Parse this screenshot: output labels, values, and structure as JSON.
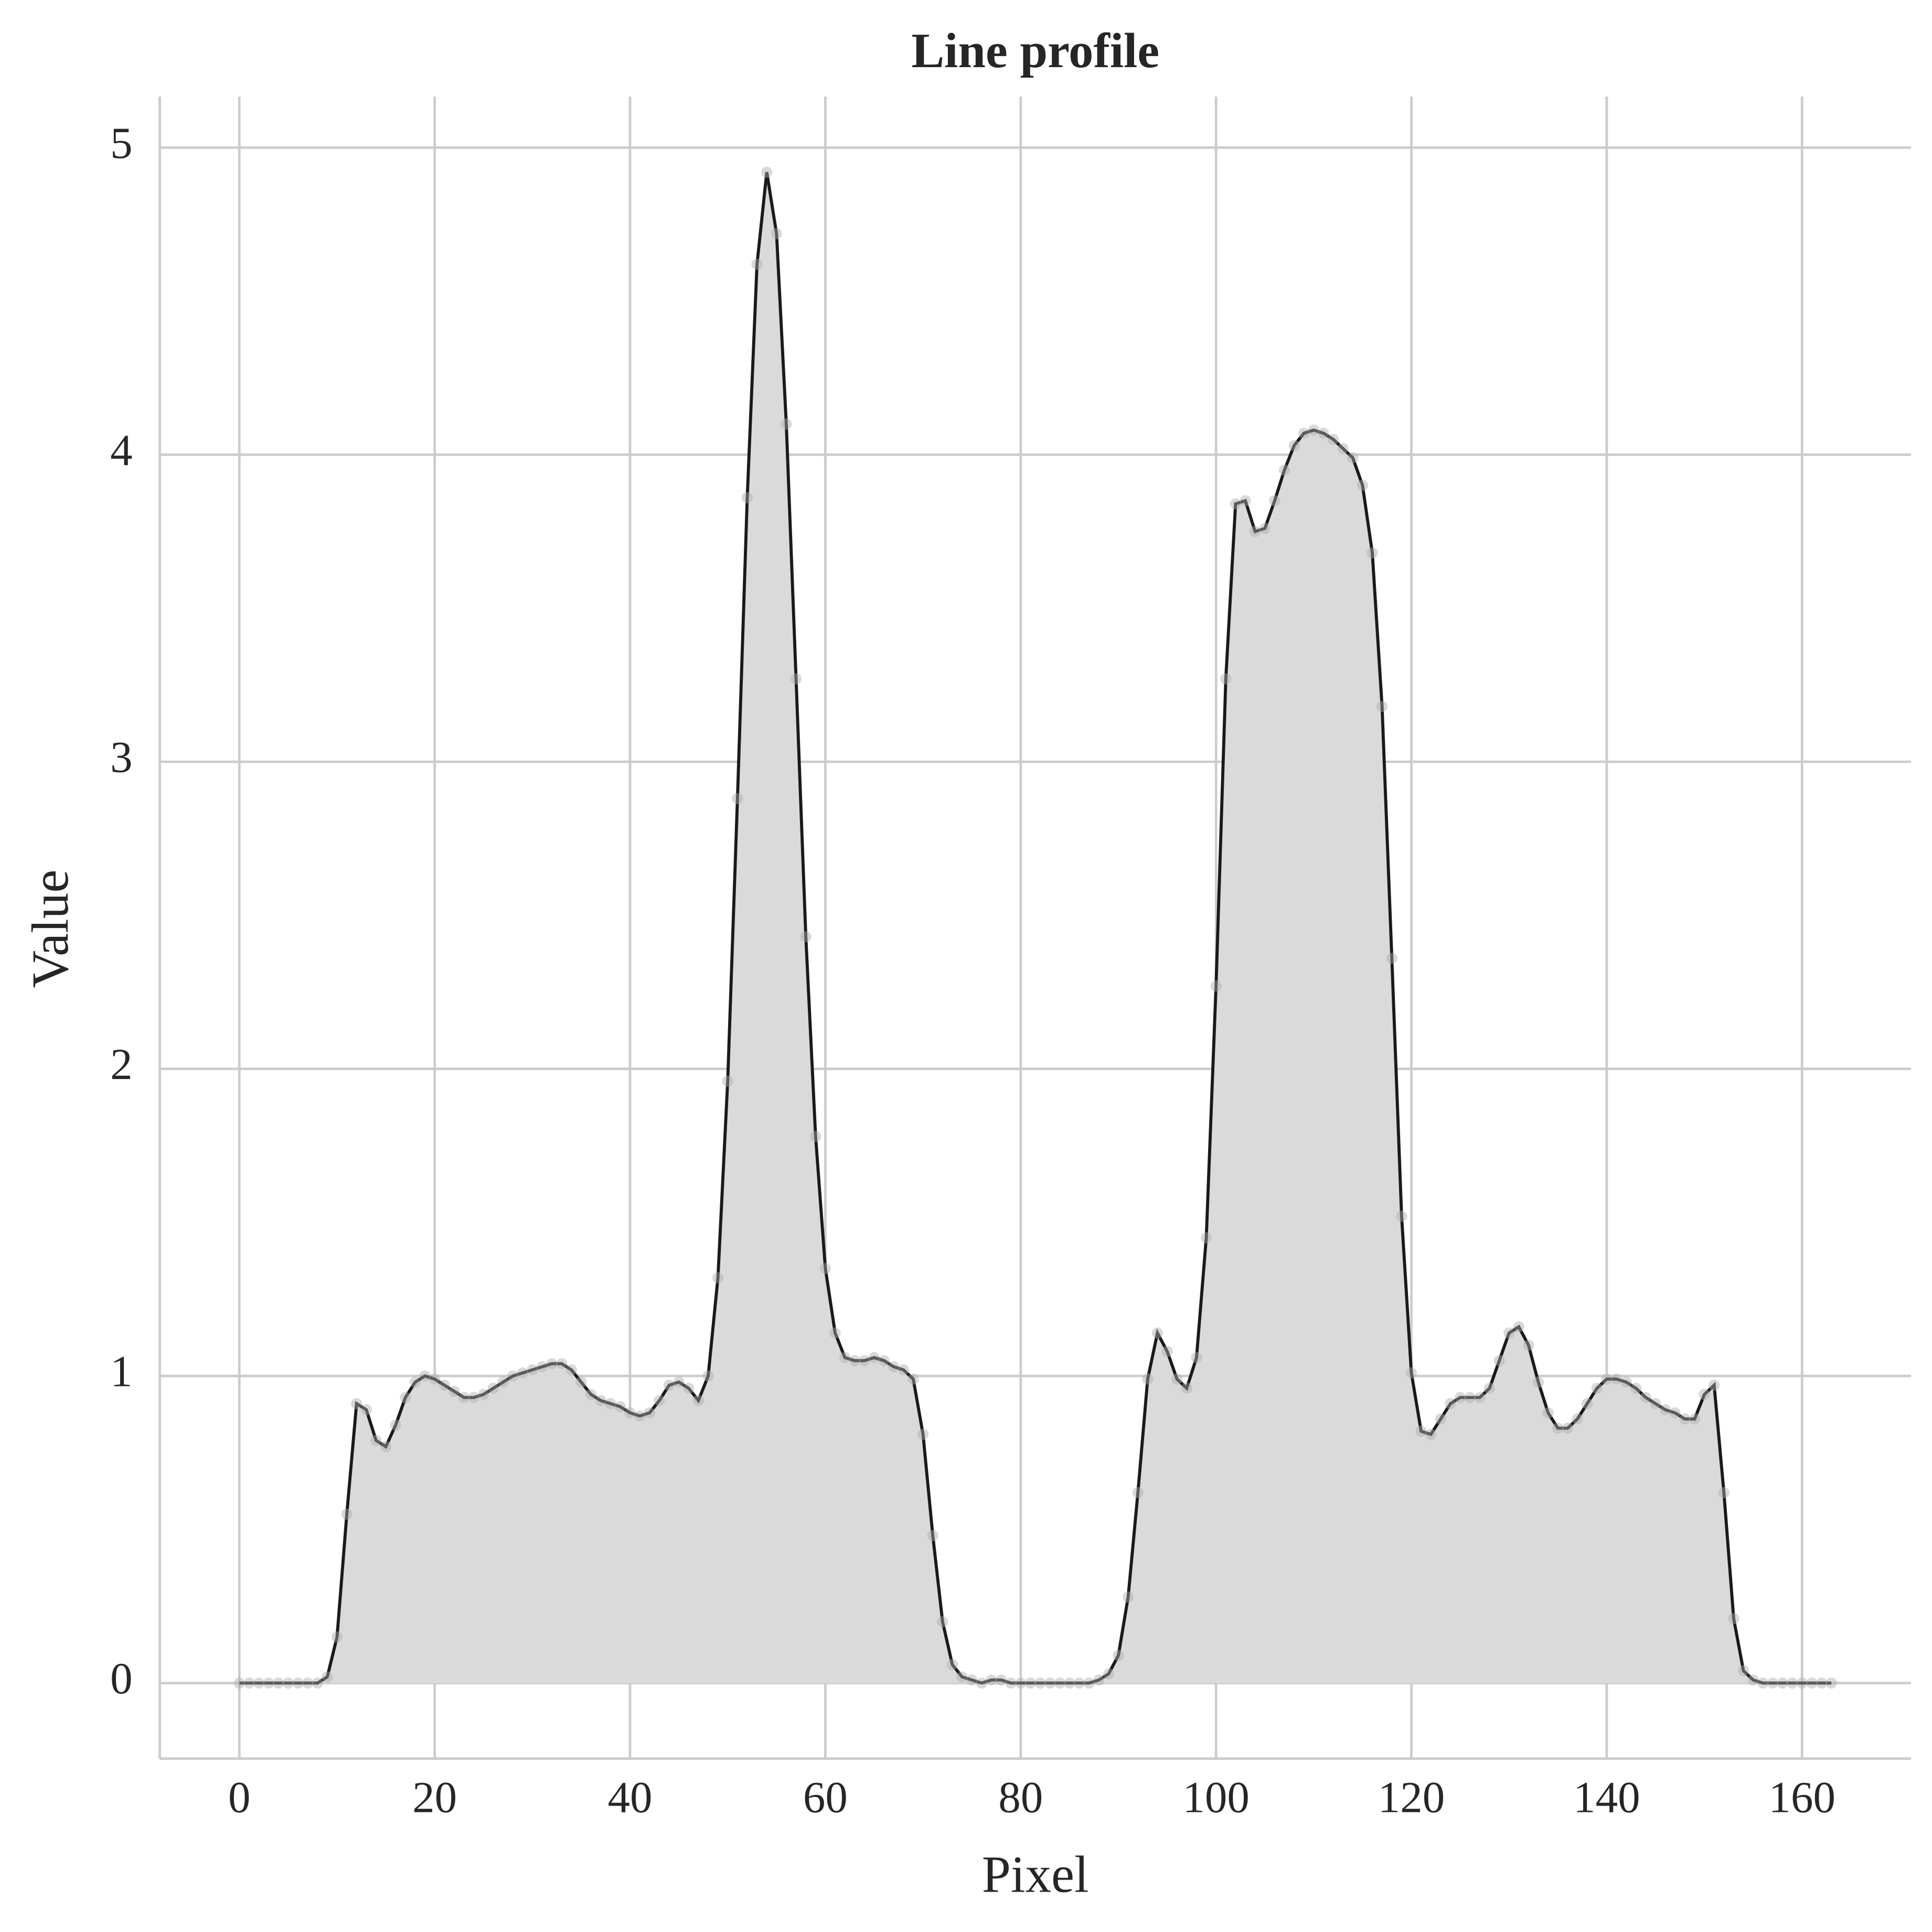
{
  "chart_data": {
    "type": "area-line",
    "title": "Line profile",
    "xlabel": "Pixel",
    "ylabel": "Value",
    "x": [
      0,
      1,
      2,
      3,
      4,
      5,
      6,
      7,
      8,
      9,
      10,
      11,
      12,
      13,
      14,
      15,
      16,
      17,
      18,
      19,
      20,
      21,
      22,
      23,
      24,
      25,
      26,
      27,
      28,
      29,
      30,
      31,
      32,
      33,
      34,
      35,
      36,
      37,
      38,
      39,
      40,
      41,
      42,
      43,
      44,
      45,
      46,
      47,
      48,
      49,
      50,
      51,
      52,
      53,
      54,
      55,
      56,
      57,
      58,
      59,
      60,
      61,
      62,
      63,
      64,
      65,
      66,
      67,
      68,
      69,
      70,
      71,
      72,
      73,
      74,
      75,
      76,
      77,
      78,
      79,
      80,
      81,
      82,
      83,
      84,
      85,
      86,
      87,
      88,
      89,
      90,
      91,
      92,
      93,
      94,
      95,
      96,
      97,
      98,
      99,
      100,
      101,
      102,
      103,
      104,
      105,
      106,
      107,
      108,
      109,
      110,
      111,
      112,
      113,
      114,
      115,
      116,
      117,
      118,
      119,
      120,
      121,
      122,
      123,
      124,
      125,
      126,
      127,
      128,
      129,
      130,
      131,
      132,
      133,
      134,
      135,
      136,
      137,
      138,
      139,
      140,
      141,
      142,
      143,
      144,
      145,
      146,
      147,
      148,
      149,
      150,
      151,
      152,
      153,
      154,
      155,
      156,
      157,
      158,
      159,
      160,
      161,
      162,
      163
    ],
    "series": [
      {
        "line_color": "#1a1a1a",
        "fill_color": "#dadada",
        "marker_color": "#aaaaaa",
        "values": [
          0,
          0,
          0,
          0,
          0,
          0,
          0,
          0,
          0,
          0.02,
          0.15,
          0.55,
          0.91,
          0.89,
          0.79,
          0.77,
          0.84,
          0.93,
          0.98,
          1.0,
          0.99,
          0.97,
          0.95,
          0.93,
          0.93,
          0.94,
          0.96,
          0.98,
          1.0,
          1.01,
          1.02,
          1.03,
          1.04,
          1.04,
          1.02,
          0.98,
          0.94,
          0.92,
          0.91,
          0.9,
          0.88,
          0.87,
          0.88,
          0.92,
          0.97,
          0.98,
          0.96,
          0.92,
          1.0,
          1.32,
          1.96,
          2.88,
          3.86,
          4.62,
          4.92,
          4.72,
          4.1,
          3.27,
          2.43,
          1.78,
          1.35,
          1.14,
          1.06,
          1.05,
          1.05,
          1.06,
          1.05,
          1.03,
          1.02,
          0.99,
          0.81,
          0.48,
          0.2,
          0.06,
          0.02,
          0.01,
          0,
          0.01,
          0.01,
          0,
          0,
          0,
          0,
          0,
          0,
          0,
          0,
          0,
          0.01,
          0.03,
          0.09,
          0.28,
          0.62,
          0.99,
          1.14,
          1.08,
          0.99,
          0.96,
          1.06,
          1.45,
          2.27,
          3.27,
          3.84,
          3.85,
          3.75,
          3.76,
          3.85,
          3.95,
          4.03,
          4.07,
          4.08,
          4.07,
          4.05,
          4.02,
          3.99,
          3.9,
          3.68,
          3.18,
          2.36,
          1.52,
          1.01,
          0.82,
          0.81,
          0.86,
          0.91,
          0.93,
          0.93,
          0.93,
          0.96,
          1.05,
          1.14,
          1.16,
          1.1,
          0.98,
          0.88,
          0.83,
          0.83,
          0.86,
          0.91,
          0.96,
          0.99,
          0.99,
          0.98,
          0.96,
          0.93,
          0.91,
          0.89,
          0.88,
          0.86,
          0.86,
          0.94,
          0.97,
          0.62,
          0.21,
          0.04,
          0.01,
          0,
          0,
          0,
          0,
          0,
          0,
          0,
          0
        ]
      }
    ],
    "xlim": [
      -8.15,
      171.15
    ],
    "ylim": [
      -0.246,
      5.166
    ],
    "xticks": [
      0,
      20,
      40,
      60,
      80,
      100,
      120,
      140,
      160
    ],
    "yticks": [
      0,
      1,
      2,
      3,
      4,
      5
    ],
    "grid": true
  }
}
